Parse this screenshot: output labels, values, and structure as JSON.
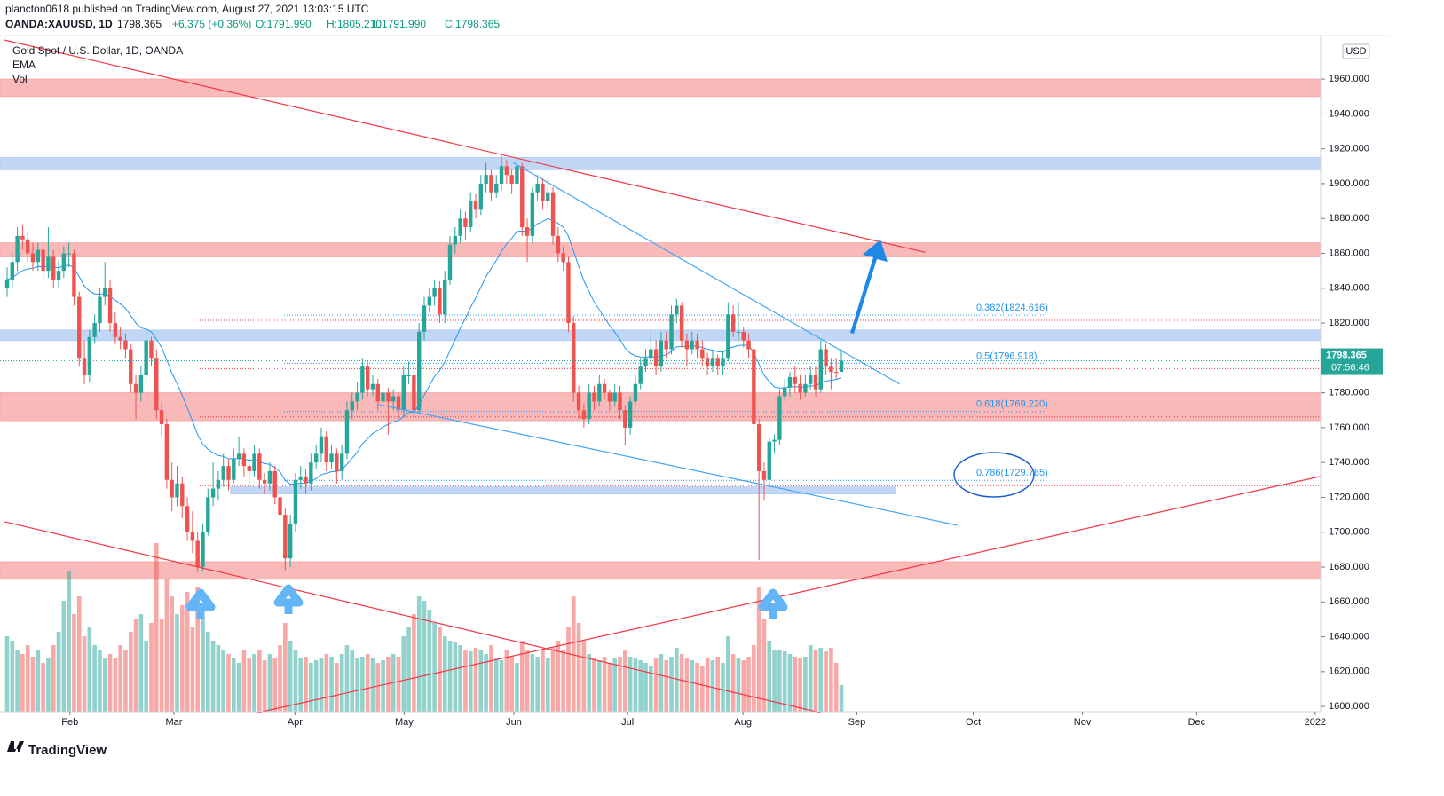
{
  "header": {
    "publisher": "plancton0618 published on TradingView.com, August 27, 2021 13:03:15 UTC",
    "symbol": "OANDA:XAUUSD, 1D",
    "last": "1798.365",
    "change": "+6.375 (+0.36%)",
    "open": "O:1791.990",
    "high": "H:1805.210",
    "low": "L:1791.990",
    "close": "C:1798.365"
  },
  "legend": [
    "Gold Spot / U.S. Dollar, 1D, OANDA",
    "EMA",
    "Vol"
  ],
  "footer": "TradingView",
  "chart_data": {
    "type": "candlestick",
    "currency": "USD",
    "up_color": "#26a69a",
    "down_color": "#ef5350",
    "ema_color": "#2196f3",
    "last_price": {
      "value": 1798.365,
      "label": "1798.365",
      "countdown": "07:56:46"
    },
    "ylim": [
      1597,
      1985
    ],
    "yticks": [
      {
        "value": 1600,
        "label": "1600.000"
      },
      {
        "value": 1620,
        "label": "1620.000"
      },
      {
        "value": 1640,
        "label": "1640.000"
      },
      {
        "value": 1660,
        "label": "1660.000"
      },
      {
        "value": 1680,
        "label": "1680.000"
      },
      {
        "value": 1700,
        "label": "1700.000"
      },
      {
        "value": 1720,
        "label": "1720.000"
      },
      {
        "value": 1740,
        "label": "1740.000"
      },
      {
        "value": 1760,
        "label": "1760.000"
      },
      {
        "value": 1780,
        "label": "1780.000"
      },
      {
        "value": 1800,
        "label": "1800.000"
      },
      {
        "value": 1820,
        "label": "1820.000"
      },
      {
        "value": 1840,
        "label": "1840.000"
      },
      {
        "value": 1860,
        "label": "1860.000"
      },
      {
        "value": 1880,
        "label": "1880.000"
      },
      {
        "value": 1900,
        "label": "1900.000"
      },
      {
        "value": 1920,
        "label": "1920.000"
      },
      {
        "value": 1940,
        "label": "1940.000"
      },
      {
        "value": 1960,
        "label": "1960.000"
      }
    ],
    "xticks": [
      {
        "value": 12.2,
        "label": "Feb"
      },
      {
        "value": 32.4,
        "label": "Mar"
      },
      {
        "value": 55.9,
        "label": "Apr"
      },
      {
        "value": 77.1,
        "label": "May"
      },
      {
        "value": 98.4,
        "label": "Jun"
      },
      {
        "value": 120.5,
        "label": "Jul"
      },
      {
        "value": 142.9,
        "label": "Aug"
      },
      {
        "value": 165,
        "label": "Sep"
      },
      {
        "value": 187.6,
        "label": "Oct"
      },
      {
        "value": 208.8,
        "label": "Nov"
      },
      {
        "value": 231,
        "label": "Dec"
      },
      {
        "value": 254,
        "label": "2022"
      }
    ],
    "candles": [
      [
        1840,
        1852,
        1835,
        1845
      ],
      [
        1845,
        1860,
        1840,
        1855
      ],
      [
        1855,
        1875,
        1850,
        1870
      ],
      [
        1870,
        1876,
        1862,
        1868
      ],
      [
        1868,
        1872,
        1855,
        1860
      ],
      [
        1860,
        1866,
        1850,
        1855
      ],
      [
        1855,
        1866,
        1850,
        1862
      ],
      [
        1862,
        1865,
        1845,
        1850
      ],
      [
        1850,
        1875,
        1846,
        1858
      ],
      [
        1858,
        1862,
        1840,
        1845
      ],
      [
        1845,
        1856,
        1840,
        1850
      ],
      [
        1850,
        1864,
        1846,
        1860
      ],
      [
        1860,
        1866,
        1852,
        1860
      ],
      [
        1860,
        1862,
        1830,
        1835
      ],
      [
        1835,
        1838,
        1795,
        1800
      ],
      [
        1800,
        1810,
        1785,
        1790
      ],
      [
        1790,
        1816,
        1786,
        1812
      ],
      [
        1812,
        1825,
        1808,
        1820
      ],
      [
        1820,
        1840,
        1815,
        1835
      ],
      [
        1835,
        1855,
        1830,
        1840
      ],
      [
        1840,
        1845,
        1815,
        1820
      ],
      [
        1820,
        1826,
        1808,
        1812
      ],
      [
        1812,
        1818,
        1805,
        1810
      ],
      [
        1810,
        1814,
        1800,
        1805
      ],
      [
        1805,
        1808,
        1780,
        1785
      ],
      [
        1785,
        1790,
        1765,
        1780
      ],
      [
        1780,
        1795,
        1775,
        1790
      ],
      [
        1790,
        1815,
        1786,
        1810
      ],
      [
        1810,
        1812,
        1795,
        1800
      ],
      [
        1800,
        1805,
        1765,
        1770
      ],
      [
        1770,
        1774,
        1755,
        1762
      ],
      [
        1762,
        1765,
        1725,
        1730
      ],
      [
        1730,
        1740,
        1712,
        1720
      ],
      [
        1720,
        1738,
        1715,
        1728
      ],
      [
        1728,
        1732,
        1708,
        1715
      ],
      [
        1715,
        1720,
        1695,
        1700
      ],
      [
        1700,
        1712,
        1688,
        1695
      ],
      [
        1695,
        1700,
        1677,
        1680
      ],
      [
        1680,
        1705,
        1678,
        1700
      ],
      [
        1700,
        1725,
        1698,
        1720
      ],
      [
        1720,
        1740,
        1715,
        1725
      ],
      [
        1725,
        1735,
        1718,
        1730
      ],
      [
        1730,
        1745,
        1726,
        1738
      ],
      [
        1738,
        1742,
        1724,
        1730
      ],
      [
        1730,
        1748,
        1728,
        1742
      ],
      [
        1742,
        1755,
        1738,
        1745
      ],
      [
        1745,
        1748,
        1732,
        1738
      ],
      [
        1738,
        1742,
        1728,
        1735
      ],
      [
        1735,
        1750,
        1732,
        1745
      ],
      [
        1745,
        1748,
        1725,
        1730
      ],
      [
        1730,
        1734,
        1722,
        1728
      ],
      [
        1728,
        1740,
        1724,
        1735
      ],
      [
        1735,
        1738,
        1716,
        1720
      ],
      [
        1720,
        1724,
        1705,
        1710
      ],
      [
        1710,
        1714,
        1678,
        1685
      ],
      [
        1685,
        1710,
        1680,
        1705
      ],
      [
        1705,
        1734,
        1700,
        1730
      ],
      [
        1730,
        1738,
        1725,
        1732
      ],
      [
        1732,
        1736,
        1722,
        1728
      ],
      [
        1728,
        1745,
        1724,
        1740
      ],
      [
        1740,
        1750,
        1736,
        1745
      ],
      [
        1745,
        1760,
        1740,
        1755
      ],
      [
        1755,
        1758,
        1735,
        1740
      ],
      [
        1740,
        1750,
        1736,
        1745
      ],
      [
        1745,
        1748,
        1728,
        1735
      ],
      [
        1735,
        1750,
        1730,
        1745
      ],
      [
        1745,
        1775,
        1742,
        1770
      ],
      [
        1770,
        1780,
        1765,
        1775
      ],
      [
        1775,
        1786,
        1770,
        1780
      ],
      [
        1780,
        1800,
        1776,
        1795
      ],
      [
        1795,
        1798,
        1778,
        1782
      ],
      [
        1782,
        1790,
        1778,
        1785
      ],
      [
        1785,
        1788,
        1770,
        1775
      ],
      [
        1775,
        1785,
        1770,
        1780
      ],
      [
        1780,
        1783,
        1756,
        1775
      ],
      [
        1775,
        1782,
        1770,
        1778
      ],
      [
        1778,
        1780,
        1765,
        1770
      ],
      [
        1770,
        1795,
        1766,
        1790
      ],
      [
        1790,
        1798,
        1785,
        1790
      ],
      [
        1790,
        1794,
        1765,
        1770
      ],
      [
        1770,
        1820,
        1768,
        1815
      ],
      [
        1815,
        1835,
        1810,
        1830
      ],
      [
        1830,
        1840,
        1826,
        1835
      ],
      [
        1835,
        1845,
        1830,
        1840
      ],
      [
        1840,
        1844,
        1820,
        1825
      ],
      [
        1825,
        1850,
        1820,
        1845
      ],
      [
        1845,
        1870,
        1842,
        1865
      ],
      [
        1865,
        1875,
        1860,
        1870
      ],
      [
        1870,
        1885,
        1866,
        1880
      ],
      [
        1880,
        1884,
        1868,
        1875
      ],
      [
        1875,
        1895,
        1872,
        1890
      ],
      [
        1890,
        1894,
        1880,
        1885
      ],
      [
        1885,
        1905,
        1882,
        1900
      ],
      [
        1900,
        1912,
        1895,
        1905
      ],
      [
        1905,
        1908,
        1890,
        1895
      ],
      [
        1895,
        1905,
        1892,
        1900
      ],
      [
        1900,
        1916,
        1896,
        1910
      ],
      [
        1910,
        1914,
        1900,
        1905
      ],
      [
        1905,
        1908,
        1894,
        1900
      ],
      [
        1900,
        1914,
        1896,
        1910
      ],
      [
        1910,
        1912,
        1870,
        1875
      ],
      [
        1875,
        1880,
        1855,
        1870
      ],
      [
        1870,
        1898,
        1866,
        1895
      ],
      [
        1895,
        1905,
        1890,
        1900
      ],
      [
        1900,
        1903,
        1885,
        1890
      ],
      [
        1890,
        1903,
        1886,
        1895
      ],
      [
        1895,
        1898,
        1865,
        1870
      ],
      [
        1870,
        1875,
        1855,
        1860
      ],
      [
        1860,
        1864,
        1850,
        1855
      ],
      [
        1855,
        1858,
        1815,
        1820
      ],
      [
        1820,
        1824,
        1775,
        1780
      ],
      [
        1780,
        1784,
        1765,
        1770
      ],
      [
        1770,
        1774,
        1760,
        1765
      ],
      [
        1765,
        1785,
        1762,
        1780
      ],
      [
        1780,
        1784,
        1770,
        1775
      ],
      [
        1775,
        1790,
        1772,
        1785
      ],
      [
        1785,
        1788,
        1776,
        1780
      ],
      [
        1780,
        1782,
        1770,
        1775
      ],
      [
        1775,
        1785,
        1772,
        1780
      ],
      [
        1780,
        1784,
        1765,
        1770
      ],
      [
        1770,
        1773,
        1750,
        1760
      ],
      [
        1760,
        1778,
        1756,
        1775
      ],
      [
        1775,
        1790,
        1772,
        1785
      ],
      [
        1785,
        1800,
        1782,
        1795
      ],
      [
        1795,
        1805,
        1792,
        1800
      ],
      [
        1800,
        1815,
        1796,
        1805
      ],
      [
        1805,
        1810,
        1790,
        1795
      ],
      [
        1795,
        1815,
        1792,
        1810
      ],
      [
        1810,
        1815,
        1800,
        1805
      ],
      [
        1805,
        1830,
        1802,
        1825
      ],
      [
        1825,
        1834,
        1820,
        1830
      ],
      [
        1830,
        1832,
        1806,
        1810
      ],
      [
        1810,
        1814,
        1795,
        1805
      ],
      [
        1805,
        1815,
        1802,
        1810
      ],
      [
        1810,
        1814,
        1800,
        1805
      ],
      [
        1805,
        1810,
        1795,
        1800
      ],
      [
        1800,
        1803,
        1790,
        1795
      ],
      [
        1795,
        1804,
        1792,
        1800
      ],
      [
        1800,
        1802,
        1790,
        1795
      ],
      [
        1795,
        1804,
        1790,
        1800
      ],
      [
        1800,
        1832,
        1798,
        1825
      ],
      [
        1825,
        1830,
        1812,
        1815
      ],
      [
        1815,
        1832,
        1810,
        1815
      ],
      [
        1815,
        1818,
        1806,
        1810
      ],
      [
        1810,
        1814,
        1800,
        1805
      ],
      [
        1805,
        1808,
        1758,
        1762
      ],
      [
        1762,
        1765,
        1684,
        1735
      ],
      [
        1735,
        1740,
        1718,
        1730
      ],
      [
        1730,
        1755,
        1726,
        1752
      ],
      [
        1752,
        1756,
        1745,
        1753
      ],
      [
        1753,
        1782,
        1750,
        1778
      ],
      [
        1778,
        1788,
        1775,
        1783
      ],
      [
        1783,
        1792,
        1778,
        1789
      ],
      [
        1789,
        1795,
        1780,
        1785
      ],
      [
        1785,
        1790,
        1776,
        1780
      ],
      [
        1780,
        1790,
        1778,
        1785
      ],
      [
        1785,
        1795,
        1782,
        1790
      ],
      [
        1790,
        1795,
        1778,
        1782
      ],
      [
        1782,
        1810,
        1780,
        1805
      ],
      [
        1805,
        1808,
        1790,
        1795
      ],
      [
        1795,
        1800,
        1782,
        1792
      ],
      [
        1792,
        1800,
        1788,
        1791.99
      ],
      [
        1791.99,
        1805.21,
        1791.99,
        1798.365
      ]
    ],
    "volume": [
      85,
      80,
      70,
      65,
      75,
      62,
      70,
      55,
      60,
      75,
      90,
      125,
      158,
      110,
      130,
      85,
      95,
      75,
      70,
      60,
      65,
      60,
      75,
      70,
      90,
      105,
      110,
      80,
      100,
      190,
      105,
      150,
      130,
      110,
      120,
      135,
      95,
      140,
      105,
      90,
      80,
      75,
      70,
      65,
      60,
      55,
      70,
      60,
      65,
      70,
      58,
      65,
      60,
      75,
      100,
      80,
      70,
      60,
      62,
      55,
      58,
      60,
      65,
      62,
      55,
      65,
      75,
      70,
      60,
      62,
      65,
      60,
      55,
      58,
      62,
      65,
      62,
      85,
      95,
      110,
      130,
      125,
      115,
      100,
      95,
      85,
      80,
      78,
      75,
      70,
      68,
      72,
      70,
      65,
      75,
      60,
      58,
      70,
      62,
      55,
      80,
      70,
      65,
      62,
      70,
      60,
      72,
      80,
      70,
      95,
      130,
      100,
      80,
      65,
      60,
      58,
      62,
      55,
      60,
      62,
      70,
      62,
      60,
      58,
      55,
      52,
      60,
      65,
      58,
      62,
      72,
      65,
      60,
      58,
      55,
      52,
      60,
      58,
      62,
      55,
      85,
      65,
      60,
      58,
      62,
      75,
      140,
      105,
      80,
      70,
      70,
      68,
      65,
      62,
      60,
      62,
      75,
      70,
      72,
      68,
      72,
      55,
      30
    ],
    "zones": [
      {
        "from": 1950,
        "to": 1960,
        "color": "#f7a8a8"
      },
      {
        "from": 1908,
        "to": 1915,
        "color": "#b3cdf3"
      },
      {
        "from": 1858,
        "to": 1866,
        "color": "#f7a8a8"
      },
      {
        "from": 1810,
        "to": 1816,
        "color": "#b3cdf3"
      },
      {
        "from": 1764,
        "to": 1780,
        "color": "#f7a8a8"
      },
      {
        "from": 1722,
        "to": 1726,
        "color": "#b3cdf3",
        "x": [
          43.4,
          172.4
        ]
      },
      {
        "from": 1673,
        "to": 1683,
        "color": "#f7a8a8"
      }
    ],
    "lines": [
      {
        "x": [
          -0.5,
          178.3
        ],
        "y": [
          1982.4,
          1860.6
        ],
        "color": "#f23645"
      },
      {
        "x": [
          -0.5,
          158
        ],
        "y": [
          1706,
          1596.4
        ],
        "color": "#f23645"
      },
      {
        "x": [
          48.6,
          255
        ],
        "y": [
          1596.4,
          1732
        ],
        "color": "#f23645"
      },
      {
        "x": [
          98.3,
          173.3
        ],
        "y": [
          1912,
          1785
        ],
        "color": "#42a5f5"
      },
      {
        "x": [
          71.9,
          184.5
        ],
        "y": [
          1773.4,
          1704
        ],
        "color": "#42a5f5"
      }
    ],
    "fib": [
      {
        "label": "0.382(1824.616)",
        "value": 1824.616
      },
      {
        "label": "0.5(1796.918)",
        "value": 1796.918
      },
      {
        "label": "0.618(1769.220)",
        "value": 1769.22
      },
      {
        "label": "0.786(1729.785)",
        "value": 1729.785
      }
    ]
  }
}
